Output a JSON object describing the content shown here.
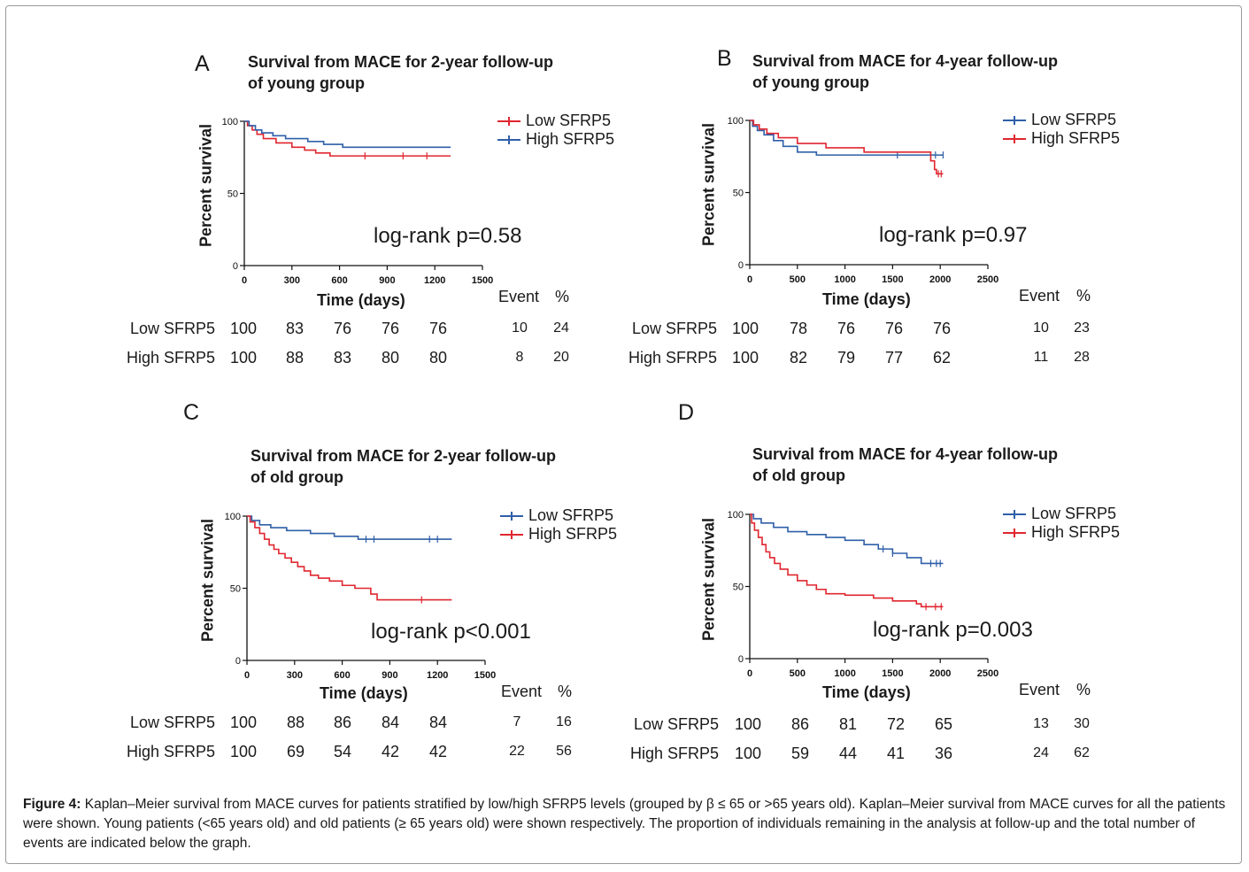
{
  "colors": {
    "red": "#e0262f",
    "blue": "#2f5fa8"
  },
  "caption": {
    "label": "Figure 4:",
    "text": " Kaplan–Meier survival from MACE curves for patients stratified by low/high SFRP5 levels (grouped by β ≤ 65 or >65 years old). Kaplan–Meier survival from MACE curves for all the patients were shown. Young patients (<65 years old) and old patients (≥ 65 years old) were shown respectively. The proportion of individuals remaining in the analysis at follow-up and the total number of events are indicated below the graph."
  },
  "chart_data": [
    {
      "type": "line",
      "panel": "A",
      "title_line1": "Survival from MACE for 2-year follow-up",
      "title_line2": "of young group",
      "xlabel": "Time (days)",
      "ylabel": "Percent survival",
      "xlim": [
        0,
        1500
      ],
      "ylim": [
        0,
        100
      ],
      "xticks": [
        0,
        300,
        600,
        900,
        1200,
        1500
      ],
      "yticks": [
        0,
        50,
        100
      ],
      "grid": false,
      "legend_position": "top-right",
      "annotation": "log-rank p=0.58",
      "series": [
        {
          "name": "Low SFRP5",
          "color": "#e0262f",
          "x": [
            0,
            20,
            50,
            80,
            120,
            200,
            300,
            380,
            450,
            540,
            1300
          ],
          "y": [
            100,
            97,
            94,
            91,
            88,
            85,
            82,
            80,
            78,
            76,
            76
          ],
          "censor_x": [
            760,
            1000,
            1150
          ]
        },
        {
          "name": "High SFRP5",
          "color": "#2f5fa8",
          "x": [
            0,
            30,
            70,
            110,
            180,
            260,
            400,
            500,
            620,
            1300
          ],
          "y": [
            100,
            97,
            94,
            92,
            90,
            88,
            86,
            84,
            82,
            82
          ],
          "censor_x": []
        }
      ],
      "risk_table": {
        "event_header": "Event",
        "pct_header": "%",
        "rows": [
          {
            "label": "Low SFRP5",
            "values": [
              "100",
              "83",
              "76",
              "76",
              "76"
            ],
            "event": "10",
            "pct": "24"
          },
          {
            "label": "High SFRP5",
            "values": [
              "100",
              "88",
              "83",
              "80",
              "80"
            ],
            "event": "8",
            "pct": "20"
          }
        ]
      }
    },
    {
      "type": "line",
      "panel": "B",
      "title_line1": "Survival from MACE for 4-year follow-up",
      "title_line2": "of young group",
      "xlabel": "Time (days)",
      "ylabel": "Percent survival",
      "xlim": [
        0,
        2500
      ],
      "ylim": [
        0,
        100
      ],
      "xticks": [
        0,
        500,
        1000,
        1500,
        2000,
        2500
      ],
      "yticks": [
        0,
        50,
        100
      ],
      "grid": false,
      "legend_position": "top-right",
      "annotation": "log-rank p=0.97",
      "series": [
        {
          "name": "Low SFRP5",
          "color": "#2f5fa8",
          "x": [
            0,
            30,
            80,
            150,
            250,
            350,
            500,
            700,
            2030
          ],
          "y": [
            100,
            96,
            93,
            90,
            86,
            82,
            78,
            76,
            76
          ],
          "censor_x": [
            1550,
            1950,
            2030
          ]
        },
        {
          "name": "High SFRP5",
          "color": "#e0262f",
          "x": [
            0,
            40,
            100,
            180,
            300,
            500,
            800,
            1200,
            1900,
            1940,
            1960,
            2030
          ],
          "y": [
            100,
            97,
            94,
            91,
            88,
            84,
            81,
            78,
            72,
            66,
            63,
            63
          ],
          "censor_x": [
            1980,
            2010
          ]
        }
      ],
      "risk_table": {
        "event_header": "Event",
        "pct_header": "%",
        "rows": [
          {
            "label": "Low SFRP5",
            "values": [
              "100",
              "78",
              "76",
              "76",
              "76"
            ],
            "event": "10",
            "pct": "23"
          },
          {
            "label": "High SFRP5",
            "values": [
              "100",
              "82",
              "79",
              "77",
              "62"
            ],
            "event": "11",
            "pct": "28"
          }
        ]
      }
    },
    {
      "type": "line",
      "panel": "C",
      "title_line1": "Survival from MACE for 2-year follow-up",
      "title_line2": "of old group",
      "xlabel": "Time (days)",
      "ylabel": "Percent survival",
      "xlim": [
        0,
        1500
      ],
      "ylim": [
        0,
        100
      ],
      "xticks": [
        0,
        300,
        600,
        900,
        1200,
        1500
      ],
      "yticks": [
        0,
        50,
        100
      ],
      "grid": false,
      "legend_position": "top-right",
      "annotation": "log-rank p<0.001",
      "series": [
        {
          "name": "Low SFRP5",
          "color": "#2f5fa8",
          "x": [
            0,
            30,
            80,
            150,
            250,
            400,
            550,
            700,
            1290
          ],
          "y": [
            100,
            97,
            94,
            92,
            90,
            88,
            86,
            84,
            84
          ],
          "censor_x": [
            750,
            800,
            1150,
            1200
          ]
        },
        {
          "name": "High SFRP5",
          "color": "#e0262f",
          "x": [
            0,
            20,
            50,
            80,
            110,
            140,
            170,
            200,
            240,
            280,
            320,
            360,
            400,
            450,
            520,
            600,
            680,
            780,
            820,
            1290
          ],
          "y": [
            100,
            96,
            92,
            88,
            84,
            80,
            77,
            74,
            71,
            68,
            65,
            62,
            59,
            57,
            55,
            52,
            50,
            46,
            42,
            42
          ],
          "censor_x": [
            1100
          ]
        }
      ],
      "risk_table": {
        "event_header": "Event",
        "pct_header": "%",
        "rows": [
          {
            "label": "Low SFRP5",
            "values": [
              "100",
              "88",
              "86",
              "84",
              "84"
            ],
            "event": "7",
            "pct": "16"
          },
          {
            "label": "High SFRP5",
            "values": [
              "100",
              "69",
              "54",
              "42",
              "42"
            ],
            "event": "22",
            "pct": "56"
          }
        ]
      }
    },
    {
      "type": "line",
      "panel": "D",
      "title_line1": "Survival from MACE for 4-year follow-up",
      "title_line2": "of old group",
      "xlabel": "Time (days)",
      "ylabel": "Percent survival",
      "xlim": [
        0,
        2500
      ],
      "ylim": [
        0,
        100
      ],
      "xticks": [
        0,
        500,
        1000,
        1500,
        2000,
        2500
      ],
      "yticks": [
        0,
        50,
        100
      ],
      "grid": false,
      "legend_position": "top-right",
      "annotation": "log-rank p=0.003",
      "series": [
        {
          "name": "Low SFRP5",
          "color": "#2f5fa8",
          "x": [
            0,
            40,
            120,
            250,
            400,
            600,
            800,
            1000,
            1200,
            1350,
            1500,
            1650,
            1800,
            2030
          ],
          "y": [
            100,
            97,
            94,
            91,
            88,
            86,
            84,
            82,
            79,
            76,
            73,
            70,
            66,
            66
          ],
          "censor_x": [
            1400,
            1500,
            1900,
            1960,
            2000
          ]
        },
        {
          "name": "High SFRP5",
          "color": "#e0262f",
          "x": [
            0,
            20,
            50,
            90,
            130,
            170,
            210,
            260,
            320,
            400,
            500,
            600,
            700,
            800,
            1000,
            1300,
            1500,
            1750,
            1800,
            2030
          ],
          "y": [
            100,
            94,
            89,
            84,
            79,
            74,
            70,
            66,
            62,
            58,
            54,
            51,
            48,
            45,
            44,
            42,
            40,
            38,
            36,
            36
          ],
          "censor_x": [
            1850,
            1950,
            2010
          ]
        }
      ],
      "risk_table": {
        "event_header": "Event",
        "pct_header": "%",
        "rows": [
          {
            "label": "Low SFRP5",
            "values": [
              "100",
              "86",
              "81",
              "72",
              "65"
            ],
            "event": "13",
            "pct": "30"
          },
          {
            "label": "High SFRP5",
            "values": [
              "100",
              "59",
              "44",
              "41",
              "36"
            ],
            "event": "24",
            "pct": "62"
          }
        ]
      }
    }
  ]
}
